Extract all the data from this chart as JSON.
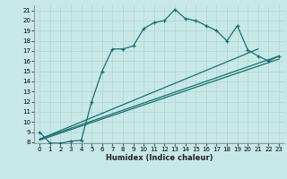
{
  "title": "",
  "xlabel": "Humidex (Indice chaleur)",
  "bg_color": "#c8e8e8",
  "grid_color": "#b0d4d4",
  "line_color": "#1a7070",
  "xlim": [
    -0.5,
    23.5
  ],
  "ylim": [
    7.9,
    21.5
  ],
  "yticks": [
    8,
    9,
    10,
    11,
    12,
    13,
    14,
    15,
    16,
    17,
    18,
    19,
    20,
    21
  ],
  "xticks": [
    0,
    1,
    2,
    3,
    4,
    5,
    6,
    7,
    8,
    9,
    10,
    11,
    12,
    13,
    14,
    15,
    16,
    17,
    18,
    19,
    20,
    21,
    22,
    23
  ],
  "line1_x": [
    0,
    1,
    2,
    3,
    4,
    5,
    6,
    7,
    8,
    9,
    10,
    11,
    12,
    13,
    14,
    15,
    16,
    17,
    18,
    19,
    20,
    21,
    22,
    23
  ],
  "line1_y": [
    9.0,
    7.9,
    7.9,
    8.1,
    8.2,
    12.0,
    15.0,
    17.2,
    17.2,
    17.5,
    19.2,
    19.8,
    20.0,
    21.1,
    20.2,
    20.0,
    19.5,
    19.0,
    18.0,
    19.5,
    17.1,
    16.5,
    16.0,
    16.5
  ],
  "line2_x": [
    0,
    23
  ],
  "line2_y": [
    8.3,
    16.5
  ],
  "line3_x": [
    0,
    21
  ],
  "line3_y": [
    8.3,
    17.2
  ],
  "line4_x": [
    0,
    23
  ],
  "line4_y": [
    8.2,
    16.2
  ]
}
